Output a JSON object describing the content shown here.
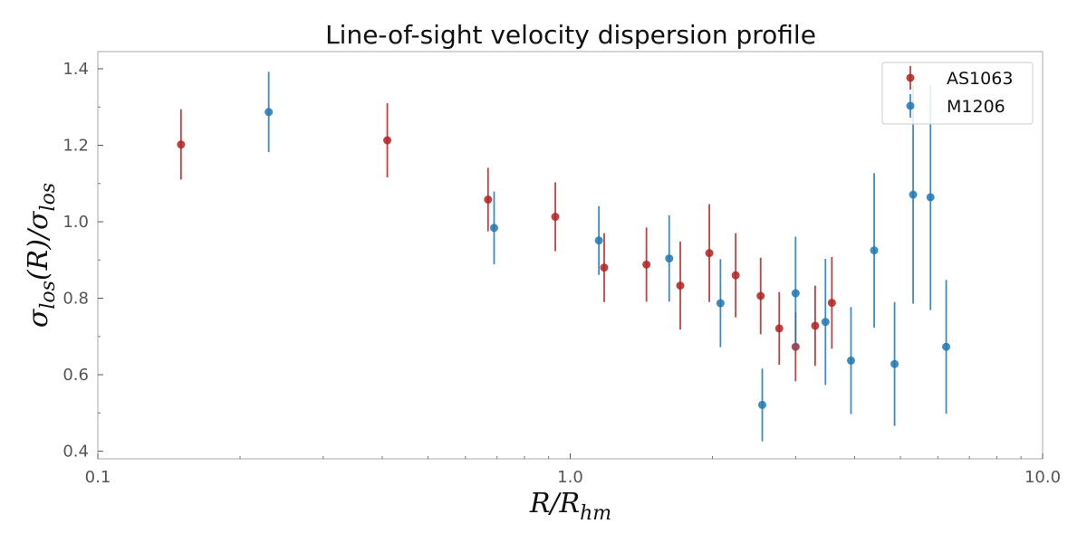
{
  "chart_data": {
    "type": "scatter",
    "title": "Line-of-sight velocity dispersion profile",
    "xlabel_main": "R/R",
    "xlabel_sub": "hm",
    "ylabel_parts": [
      "σ",
      "los",
      "(R)/σ",
      "los"
    ],
    "x_scale": "log",
    "xlim": [
      0.1,
      10.0
    ],
    "ylim": [
      0.38,
      1.445
    ],
    "x_ticks": [
      {
        "value": 0.1,
        "label": "0.1"
      },
      {
        "value": 1.0,
        "label": "1.0"
      },
      {
        "value": 10.0,
        "label": "10.0"
      }
    ],
    "y_ticks": [
      {
        "value": 0.4,
        "label": "0.4"
      },
      {
        "value": 0.6,
        "label": "0.6"
      },
      {
        "value": 0.8,
        "label": "0.8"
      },
      {
        "value": 1.0,
        "label": "1.0"
      },
      {
        "value": 1.2,
        "label": "1.2"
      },
      {
        "value": 1.4,
        "label": "1.4"
      }
    ],
    "legend_position": "top-right",
    "series": [
      {
        "name": "AS1063",
        "color": "#b22222",
        "points": [
          {
            "x": 0.15,
            "y": 1.202,
            "err": 0.092
          },
          {
            "x": 0.41,
            "y": 1.213,
            "err": 0.097
          },
          {
            "x": 0.67,
            "y": 1.058,
            "err": 0.083
          },
          {
            "x": 0.93,
            "y": 1.013,
            "err": 0.09
          },
          {
            "x": 1.18,
            "y": 0.88,
            "err": 0.09
          },
          {
            "x": 1.45,
            "y": 0.888,
            "err": 0.097
          },
          {
            "x": 1.71,
            "y": 0.833,
            "err": 0.115
          },
          {
            "x": 1.97,
            "y": 0.918,
            "err": 0.128
          },
          {
            "x": 2.24,
            "y": 0.86,
            "err": 0.11
          },
          {
            "x": 2.53,
            "y": 0.806,
            "err": 0.1
          },
          {
            "x": 2.77,
            "y": 0.721,
            "err": 0.095
          },
          {
            "x": 3.0,
            "y": 0.673,
            "err": 0.09
          },
          {
            "x": 3.3,
            "y": 0.728,
            "err": 0.105
          },
          {
            "x": 3.58,
            "y": 0.788,
            "err": 0.12
          }
        ]
      },
      {
        "name": "M1206",
        "color": "#1f77b4",
        "points": [
          {
            "x": 0.23,
            "y": 1.287,
            "err": 0.105
          },
          {
            "x": 0.69,
            "y": 0.984,
            "err": 0.095
          },
          {
            "x": 1.15,
            "y": 0.951,
            "err": 0.09
          },
          {
            "x": 1.62,
            "y": 0.904,
            "err": 0.113
          },
          {
            "x": 2.08,
            "y": 0.787,
            "err": 0.115
          },
          {
            "x": 2.55,
            "y": 0.521,
            "err": 0.095
          },
          {
            "x": 3.0,
            "y": 0.813,
            "err": 0.148
          },
          {
            "x": 3.47,
            "y": 0.738,
            "err": 0.165
          },
          {
            "x": 3.93,
            "y": 0.637,
            "err": 0.14
          },
          {
            "x": 4.4,
            "y": 0.925,
            "err": 0.202
          },
          {
            "x": 4.86,
            "y": 0.628,
            "err": 0.162
          },
          {
            "x": 5.32,
            "y": 1.071,
            "err": 0.285
          },
          {
            "x": 5.79,
            "y": 1.064,
            "err": 0.295
          },
          {
            "x": 6.25,
            "y": 0.673,
            "err": 0.175
          }
        ]
      }
    ]
  }
}
